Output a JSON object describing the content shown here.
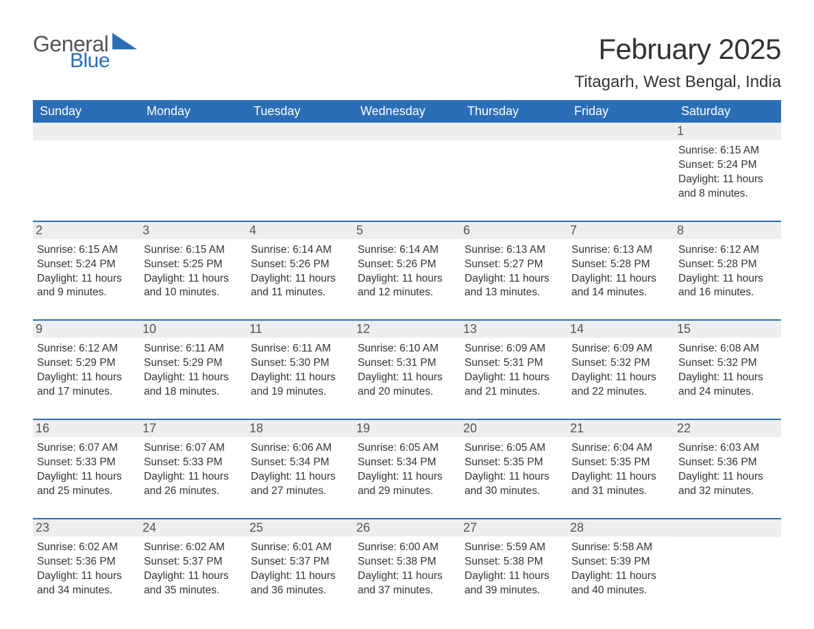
{
  "brand": {
    "text_general": "General",
    "text_blue": "Blue",
    "logo_color": "#2c6eb5",
    "text_color_general": "#555555"
  },
  "header": {
    "month_title": "February 2025",
    "location": "Titagarh, West Bengal, India"
  },
  "style": {
    "header_bg": "#2c6eb5",
    "header_text": "#ffffff",
    "daynum_bg": "#eeeeee",
    "daynum_text": "#555555",
    "body_text": "#333333",
    "row_border": "#2c6eb5",
    "page_bg": "#ffffff",
    "title_fontsize": 42,
    "location_fontsize": 24,
    "weekday_fontsize": 18,
    "detail_fontsize": 15.5
  },
  "weekdays": [
    "Sunday",
    "Monday",
    "Tuesday",
    "Wednesday",
    "Thursday",
    "Friday",
    "Saturday"
  ],
  "weeks": [
    [
      null,
      null,
      null,
      null,
      null,
      null,
      {
        "n": "1",
        "sunrise": "Sunrise: 6:15 AM",
        "sunset": "Sunset: 5:24 PM",
        "day": "Daylight: 11 hours and 8 minutes."
      }
    ],
    [
      {
        "n": "2",
        "sunrise": "Sunrise: 6:15 AM",
        "sunset": "Sunset: 5:24 PM",
        "day": "Daylight: 11 hours and 9 minutes."
      },
      {
        "n": "3",
        "sunrise": "Sunrise: 6:15 AM",
        "sunset": "Sunset: 5:25 PM",
        "day": "Daylight: 11 hours and 10 minutes."
      },
      {
        "n": "4",
        "sunrise": "Sunrise: 6:14 AM",
        "sunset": "Sunset: 5:26 PM",
        "day": "Daylight: 11 hours and 11 minutes."
      },
      {
        "n": "5",
        "sunrise": "Sunrise: 6:14 AM",
        "sunset": "Sunset: 5:26 PM",
        "day": "Daylight: 11 hours and 12 minutes."
      },
      {
        "n": "6",
        "sunrise": "Sunrise: 6:13 AM",
        "sunset": "Sunset: 5:27 PM",
        "day": "Daylight: 11 hours and 13 minutes."
      },
      {
        "n": "7",
        "sunrise": "Sunrise: 6:13 AM",
        "sunset": "Sunset: 5:28 PM",
        "day": "Daylight: 11 hours and 14 minutes."
      },
      {
        "n": "8",
        "sunrise": "Sunrise: 6:12 AM",
        "sunset": "Sunset: 5:28 PM",
        "day": "Daylight: 11 hours and 16 minutes."
      }
    ],
    [
      {
        "n": "9",
        "sunrise": "Sunrise: 6:12 AM",
        "sunset": "Sunset: 5:29 PM",
        "day": "Daylight: 11 hours and 17 minutes."
      },
      {
        "n": "10",
        "sunrise": "Sunrise: 6:11 AM",
        "sunset": "Sunset: 5:29 PM",
        "day": "Daylight: 11 hours and 18 minutes."
      },
      {
        "n": "11",
        "sunrise": "Sunrise: 6:11 AM",
        "sunset": "Sunset: 5:30 PM",
        "day": "Daylight: 11 hours and 19 minutes."
      },
      {
        "n": "12",
        "sunrise": "Sunrise: 6:10 AM",
        "sunset": "Sunset: 5:31 PM",
        "day": "Daylight: 11 hours and 20 minutes."
      },
      {
        "n": "13",
        "sunrise": "Sunrise: 6:09 AM",
        "sunset": "Sunset: 5:31 PM",
        "day": "Daylight: 11 hours and 21 minutes."
      },
      {
        "n": "14",
        "sunrise": "Sunrise: 6:09 AM",
        "sunset": "Sunset: 5:32 PM",
        "day": "Daylight: 11 hours and 22 minutes."
      },
      {
        "n": "15",
        "sunrise": "Sunrise: 6:08 AM",
        "sunset": "Sunset: 5:32 PM",
        "day": "Daylight: 11 hours and 24 minutes."
      }
    ],
    [
      {
        "n": "16",
        "sunrise": "Sunrise: 6:07 AM",
        "sunset": "Sunset: 5:33 PM",
        "day": "Daylight: 11 hours and 25 minutes."
      },
      {
        "n": "17",
        "sunrise": "Sunrise: 6:07 AM",
        "sunset": "Sunset: 5:33 PM",
        "day": "Daylight: 11 hours and 26 minutes."
      },
      {
        "n": "18",
        "sunrise": "Sunrise: 6:06 AM",
        "sunset": "Sunset: 5:34 PM",
        "day": "Daylight: 11 hours and 27 minutes."
      },
      {
        "n": "19",
        "sunrise": "Sunrise: 6:05 AM",
        "sunset": "Sunset: 5:34 PM",
        "day": "Daylight: 11 hours and 29 minutes."
      },
      {
        "n": "20",
        "sunrise": "Sunrise: 6:05 AM",
        "sunset": "Sunset: 5:35 PM",
        "day": "Daylight: 11 hours and 30 minutes."
      },
      {
        "n": "21",
        "sunrise": "Sunrise: 6:04 AM",
        "sunset": "Sunset: 5:35 PM",
        "day": "Daylight: 11 hours and 31 minutes."
      },
      {
        "n": "22",
        "sunrise": "Sunrise: 6:03 AM",
        "sunset": "Sunset: 5:36 PM",
        "day": "Daylight: 11 hours and 32 minutes."
      }
    ],
    [
      {
        "n": "23",
        "sunrise": "Sunrise: 6:02 AM",
        "sunset": "Sunset: 5:36 PM",
        "day": "Daylight: 11 hours and 34 minutes."
      },
      {
        "n": "24",
        "sunrise": "Sunrise: 6:02 AM",
        "sunset": "Sunset: 5:37 PM",
        "day": "Daylight: 11 hours and 35 minutes."
      },
      {
        "n": "25",
        "sunrise": "Sunrise: 6:01 AM",
        "sunset": "Sunset: 5:37 PM",
        "day": "Daylight: 11 hours and 36 minutes."
      },
      {
        "n": "26",
        "sunrise": "Sunrise: 6:00 AM",
        "sunset": "Sunset: 5:38 PM",
        "day": "Daylight: 11 hours and 37 minutes."
      },
      {
        "n": "27",
        "sunrise": "Sunrise: 5:59 AM",
        "sunset": "Sunset: 5:38 PM",
        "day": "Daylight: 11 hours and 39 minutes."
      },
      {
        "n": "28",
        "sunrise": "Sunrise: 5:58 AM",
        "sunset": "Sunset: 5:39 PM",
        "day": "Daylight: 11 hours and 40 minutes."
      },
      null
    ]
  ]
}
